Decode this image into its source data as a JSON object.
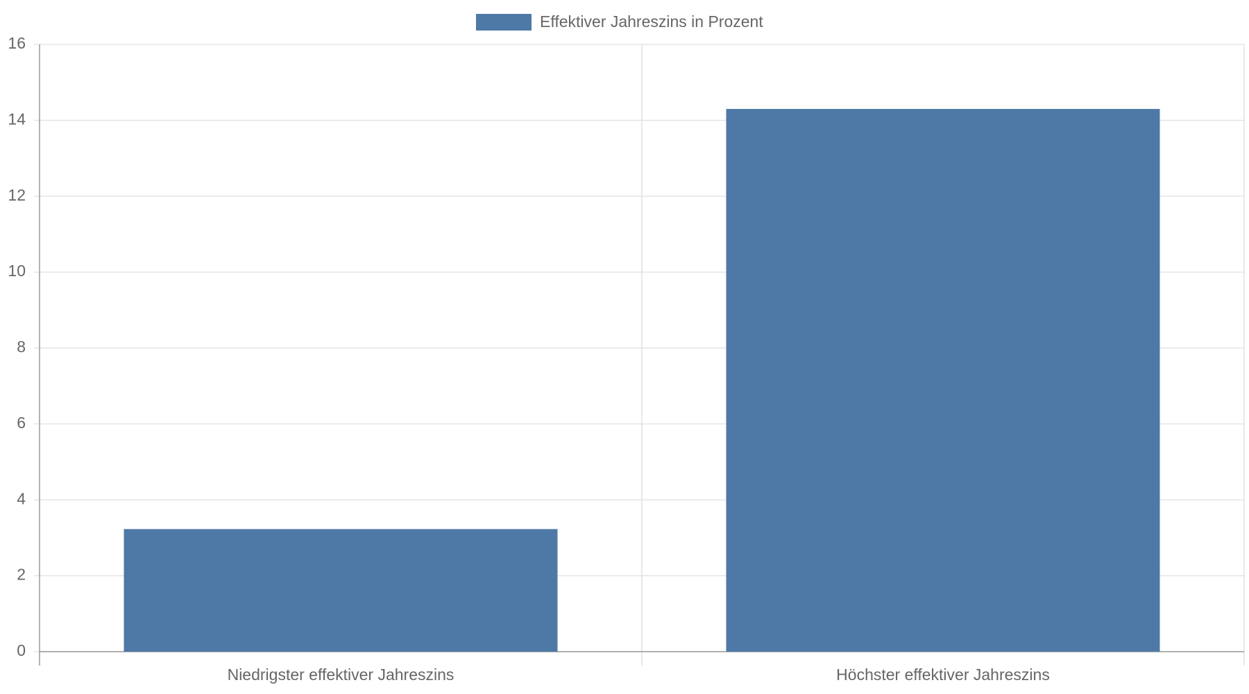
{
  "chart_data": {
    "type": "bar",
    "categories": [
      "Niedrigster effektiver Jahreszins",
      "Höchster effektiver Jahreszins"
    ],
    "series": [
      {
        "name": "Effektiver Jahreszins in Prozent",
        "color": "#4e79a7",
        "values": [
          3.23,
          14.3
        ]
      }
    ],
    "ylim": [
      0,
      16
    ],
    "yticks": [
      0,
      2,
      4,
      6,
      8,
      10,
      12,
      14,
      16
    ],
    "grid": true,
    "legend": "top"
  }
}
